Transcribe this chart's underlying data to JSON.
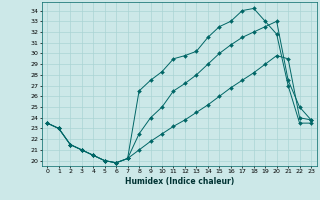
{
  "title": "",
  "xlabel": "Humidex (Indice chaleur)",
  "bg_color": "#cce8e8",
  "grid_color": "#aad4d4",
  "line_color": "#006666",
  "x_ticks": [
    0,
    1,
    2,
    3,
    4,
    5,
    6,
    7,
    8,
    9,
    10,
    11,
    12,
    13,
    14,
    15,
    16,
    17,
    18,
    19,
    20,
    21,
    22,
    23
  ],
  "y_ticks": [
    20,
    21,
    22,
    23,
    24,
    25,
    26,
    27,
    28,
    29,
    30,
    31,
    32,
    33,
    34
  ],
  "ylim": [
    19.5,
    34.8
  ],
  "xlim": [
    -0.5,
    23.5
  ],
  "line1_x": [
    0,
    1,
    2,
    3,
    4,
    5,
    6,
    7,
    8,
    9,
    10,
    11,
    12,
    13,
    14,
    15,
    16,
    17,
    18,
    19,
    20,
    21,
    22,
    23
  ],
  "line1_y": [
    23.5,
    23.0,
    21.5,
    21.0,
    20.5,
    20.0,
    19.8,
    20.2,
    26.5,
    27.5,
    28.3,
    29.5,
    29.8,
    30.2,
    31.5,
    32.5,
    33.0,
    34.0,
    34.2,
    33.0,
    31.8,
    27.0,
    23.5,
    23.5
  ],
  "line2_x": [
    0,
    1,
    2,
    3,
    4,
    5,
    6,
    7,
    8,
    9,
    10,
    11,
    12,
    13,
    14,
    15,
    16,
    17,
    18,
    19,
    20,
    21,
    22,
    23
  ],
  "line2_y": [
    23.5,
    23.0,
    21.5,
    21.0,
    20.5,
    20.0,
    19.8,
    20.2,
    22.5,
    24.0,
    25.0,
    26.5,
    27.2,
    28.0,
    29.0,
    30.0,
    30.8,
    31.5,
    32.0,
    32.5,
    33.0,
    27.5,
    25.0,
    23.8
  ],
  "line3_x": [
    0,
    1,
    2,
    3,
    4,
    5,
    6,
    7,
    8,
    9,
    10,
    11,
    12,
    13,
    14,
    15,
    16,
    17,
    18,
    19,
    20,
    21,
    22,
    23
  ],
  "line3_y": [
    23.5,
    23.0,
    21.5,
    21.0,
    20.5,
    20.0,
    19.8,
    20.2,
    21.0,
    21.8,
    22.5,
    23.2,
    23.8,
    24.5,
    25.2,
    26.0,
    26.8,
    27.5,
    28.2,
    29.0,
    29.8,
    29.5,
    24.0,
    23.8
  ]
}
